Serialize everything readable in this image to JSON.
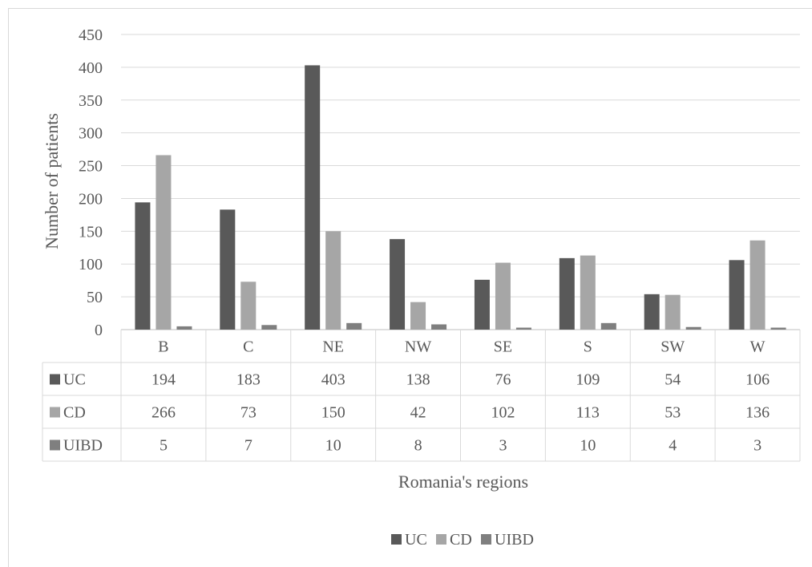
{
  "chart_data": {
    "type": "bar",
    "title": "",
    "xlabel": "Romania's regions",
    "ylabel": "Number of patients",
    "ylim": [
      0,
      450
    ],
    "yticks": [
      0,
      50,
      100,
      150,
      200,
      250,
      300,
      350,
      400,
      450
    ],
    "grid": true,
    "legend_position": "bottom",
    "data_table": true,
    "categories": [
      "B",
      "C",
      "NE",
      "NW",
      "SE",
      "S",
      "SW",
      "W"
    ],
    "series": [
      {
        "name": "UC",
        "color": "#595959",
        "values": [
          194,
          183,
          403,
          138,
          76,
          109,
          54,
          106
        ]
      },
      {
        "name": "CD",
        "color": "#a6a6a6",
        "values": [
          266,
          73,
          150,
          42,
          102,
          113,
          53,
          136
        ]
      },
      {
        "name": "UIBD",
        "color": "#7f7f7f",
        "values": [
          5,
          7,
          10,
          8,
          3,
          10,
          4,
          3
        ]
      }
    ]
  }
}
